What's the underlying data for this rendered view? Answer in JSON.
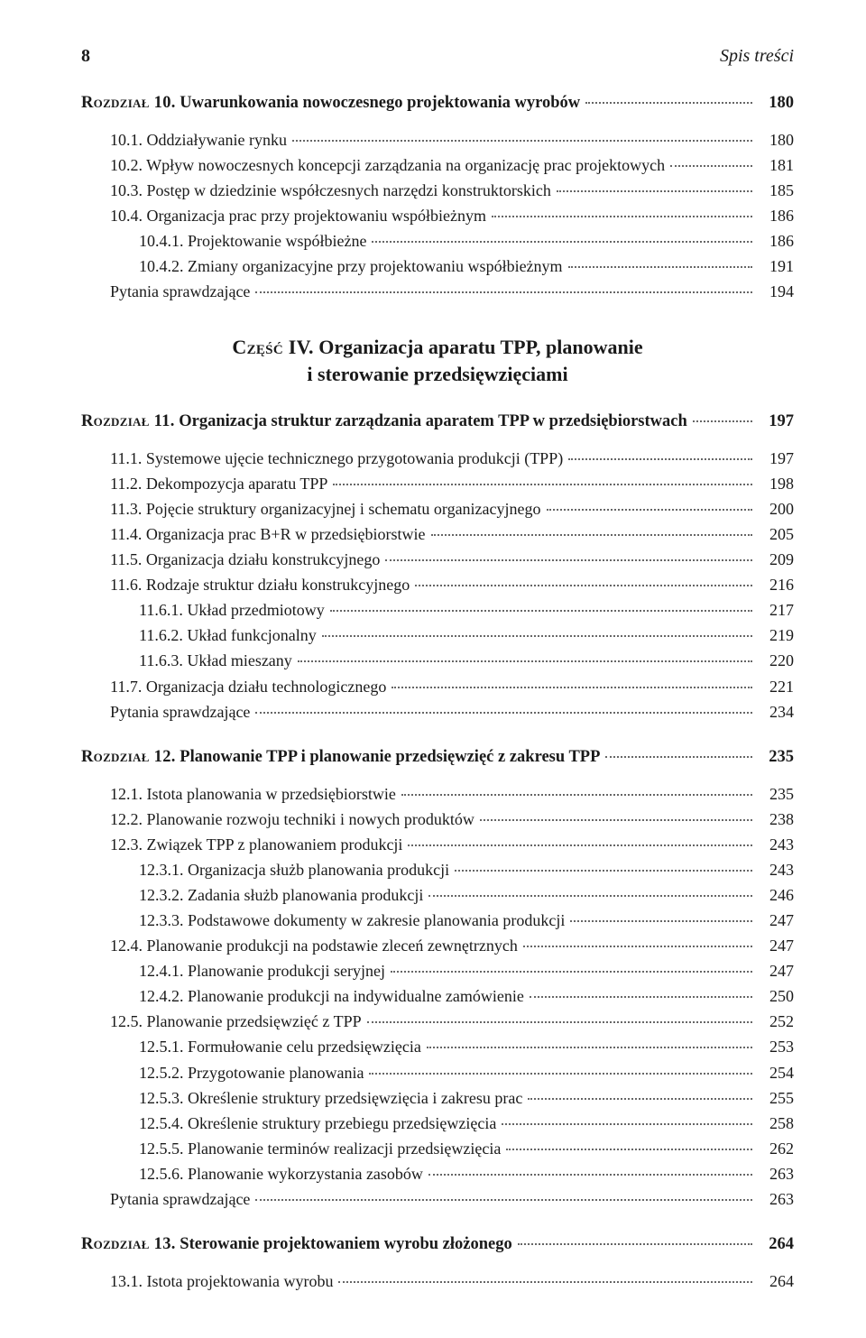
{
  "header": {
    "page_number": "8",
    "running_title": "Spis treści"
  },
  "ch10": {
    "prefix": "Rozdział 10.",
    "title": "Uwarunkowania nowoczesnego projektowania wyrobów",
    "page": "180",
    "items": [
      {
        "ind": 1,
        "label": "10.1. Oddziaływanie rynku",
        "page": "180"
      },
      {
        "ind": 1,
        "label": "10.2. Wpływ nowoczesnych koncepcji zarządzania na organizację prac projektowych",
        "page": "181"
      },
      {
        "ind": 1,
        "label": "10.3. Postęp w dziedzinie współczesnych narzędzi konstruktorskich",
        "page": "185"
      },
      {
        "ind": 1,
        "label": "10.4. Organizacja prac przy projektowaniu współbieżnym",
        "page": "186"
      },
      {
        "ind": 2,
        "label": "10.4.1. Projektowanie współbieżne",
        "page": "186"
      },
      {
        "ind": 2,
        "label": "10.4.2. Zmiany organizacyjne przy projektowaniu współbieżnym",
        "page": "191"
      },
      {
        "ind": 1,
        "label": "Pytania sprawdzające",
        "page": "194"
      }
    ]
  },
  "part4": {
    "prefix": "Część IV.",
    "line1": "Organizacja aparatu TPP, planowanie",
    "line2": "i sterowanie przedsięwzięciami"
  },
  "ch11": {
    "prefix": "Rozdział 11.",
    "title": "Organizacja struktur zarządzania aparatem TPP w przedsiębiorstwach",
    "page": "197",
    "items": [
      {
        "ind": 1,
        "label": "11.1. Systemowe ujęcie technicznego przygotowania produkcji (TPP)",
        "page": "197"
      },
      {
        "ind": 1,
        "label": "11.2. Dekompozycja aparatu TPP",
        "page": "198"
      },
      {
        "ind": 1,
        "label": "11.3. Pojęcie struktury organizacyjnej i schematu organizacyjnego",
        "page": "200"
      },
      {
        "ind": 1,
        "label": "11.4. Organizacja prac B+R w przedsiębiorstwie",
        "page": "205"
      },
      {
        "ind": 1,
        "label": "11.5. Organizacja działu konstrukcyjnego",
        "page": "209"
      },
      {
        "ind": 1,
        "label": "11.6. Rodzaje struktur działu konstrukcyjnego",
        "page": "216"
      },
      {
        "ind": 2,
        "label": "11.6.1. Układ przedmiotowy",
        "page": "217"
      },
      {
        "ind": 2,
        "label": "11.6.2. Układ funkcjonalny",
        "page": "219"
      },
      {
        "ind": 2,
        "label": "11.6.3. Układ mieszany",
        "page": "220"
      },
      {
        "ind": 1,
        "label": "11.7. Organizacja działu technologicznego",
        "page": "221"
      },
      {
        "ind": 1,
        "label": "Pytania sprawdzające",
        "page": "234"
      }
    ]
  },
  "ch12": {
    "prefix": "Rozdział 12.",
    "title": "Planowanie TPP i planowanie przedsięwzięć z zakresu TPP",
    "page": "235",
    "items": [
      {
        "ind": 1,
        "label": "12.1. Istota planowania w przedsiębiorstwie",
        "page": "235"
      },
      {
        "ind": 1,
        "label": "12.2. Planowanie rozwoju techniki i nowych produktów",
        "page": "238"
      },
      {
        "ind": 1,
        "label": "12.3. Związek TPP z planowaniem produkcji",
        "page": "243"
      },
      {
        "ind": 2,
        "label": "12.3.1. Organizacja służb planowania produkcji",
        "page": "243"
      },
      {
        "ind": 2,
        "label": "12.3.2. Zadania służb planowania produkcji",
        "page": "246"
      },
      {
        "ind": 2,
        "label": "12.3.3. Podstawowe dokumenty w zakresie planowania produkcji",
        "page": "247"
      },
      {
        "ind": 1,
        "label": "12.4. Planowanie produkcji na podstawie zleceń zewnętrznych",
        "page": "247"
      },
      {
        "ind": 2,
        "label": "12.4.1. Planowanie produkcji seryjnej",
        "page": "247"
      },
      {
        "ind": 2,
        "label": "12.4.2. Planowanie produkcji na indywidualne zamówienie",
        "page": "250"
      },
      {
        "ind": 1,
        "label": "12.5. Planowanie przedsięwzięć z TPP",
        "page": "252"
      },
      {
        "ind": 2,
        "label": "12.5.1. Formułowanie celu przedsięwzięcia",
        "page": "253"
      },
      {
        "ind": 2,
        "label": "12.5.2. Przygotowanie planowania",
        "page": "254"
      },
      {
        "ind": 2,
        "label": "12.5.3. Określenie struktury przedsięwzięcia i zakresu prac",
        "page": "255"
      },
      {
        "ind": 2,
        "label": "12.5.4. Określenie struktury przebiegu przedsięwzięcia",
        "page": "258"
      },
      {
        "ind": 2,
        "label": "12.5.5. Planowanie terminów realizacji przedsięwzięcia",
        "page": "262"
      },
      {
        "ind": 2,
        "label": "12.5.6. Planowanie wykorzystania zasobów",
        "page": "263"
      },
      {
        "ind": 1,
        "label": "Pytania sprawdzające",
        "page": "263"
      }
    ]
  },
  "ch13": {
    "prefix": "Rozdział 13.",
    "title": "Sterowanie projektowaniem wyrobu złożonego",
    "page": "264",
    "items": [
      {
        "ind": 1,
        "label": "13.1. Istota projektowania wyrobu",
        "page": "264"
      }
    ]
  }
}
